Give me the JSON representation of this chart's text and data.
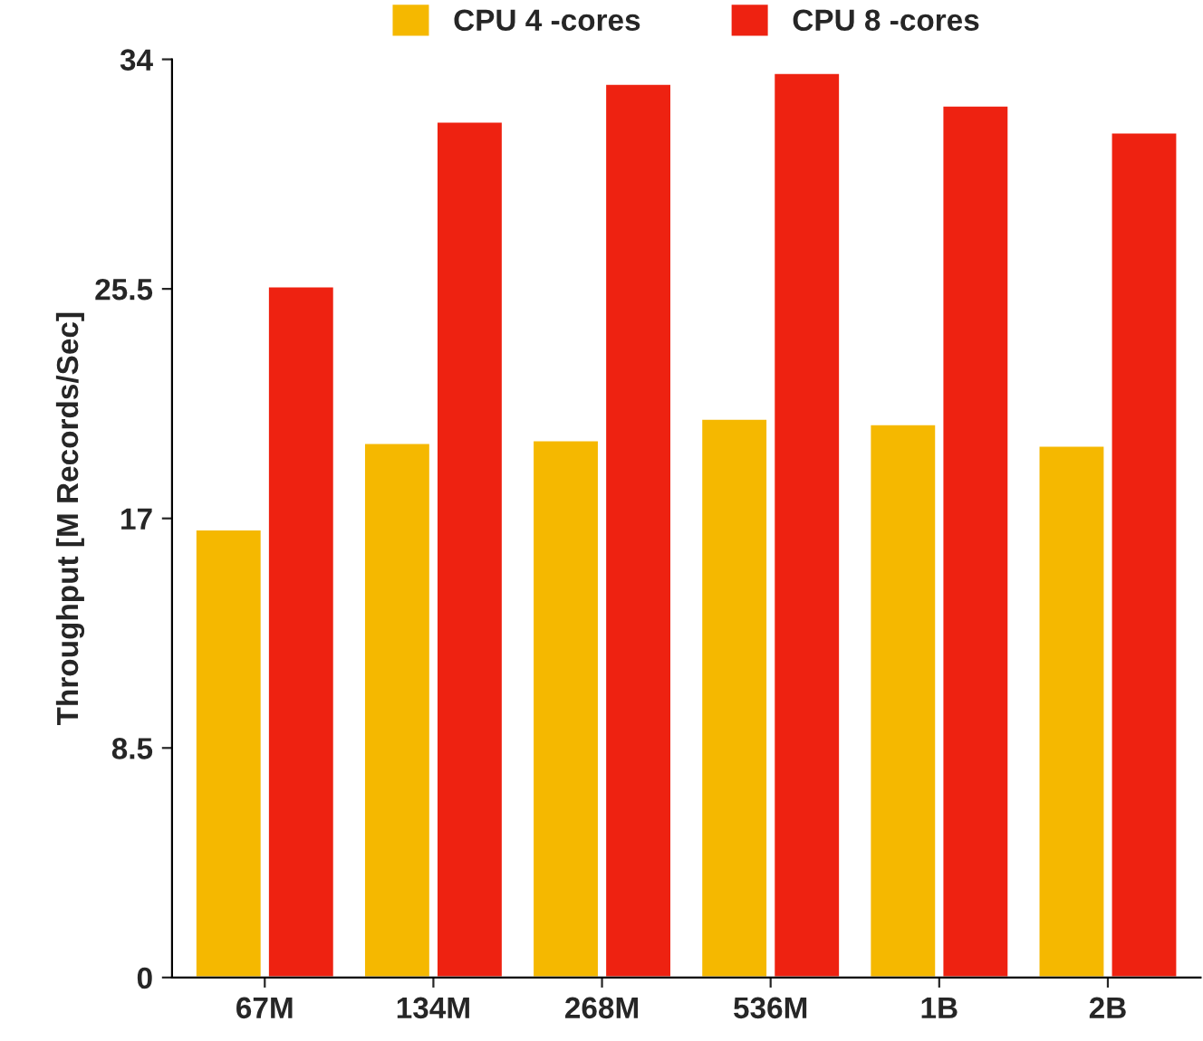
{
  "chart_data": {
    "type": "bar",
    "ylabel": "Throughput [M Records/Sec]",
    "categories": [
      "67M",
      "134M",
      "268M",
      "536M",
      "1B",
      "2B"
    ],
    "series": [
      {
        "name": "CPU 4 -cores",
        "color": "#f5b800",
        "values": [
          16.6,
          19.8,
          19.9,
          20.7,
          20.5,
          19.7
        ]
      },
      {
        "name": "CPU 8 -cores",
        "color": "#ee2211",
        "values": [
          25.6,
          31.7,
          33.1,
          33.5,
          32.3,
          31.3
        ]
      }
    ],
    "ylim": [
      0,
      34
    ],
    "yticks": [
      0,
      8.5,
      17,
      25.5,
      34
    ],
    "grid": false,
    "legend": "top"
  }
}
